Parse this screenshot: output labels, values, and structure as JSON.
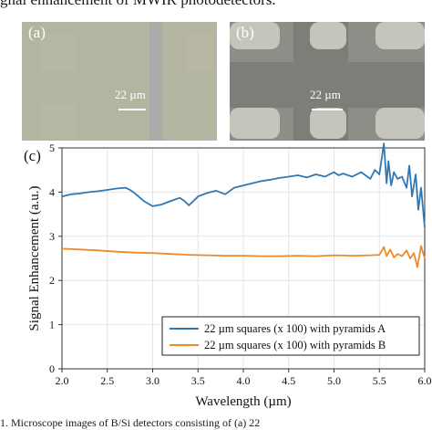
{
  "top_caption": "gnal enhancement of MWIR photodetectors.",
  "panels": {
    "a": {
      "label": "(a)",
      "scale_text": "22 µm"
    },
    "b": {
      "label": "(b)",
      "scale_text": "22 µm"
    },
    "c": {
      "label": "(c)"
    }
  },
  "bottom_caption": "1. Microscope images of B/Si detectors consisting of (a) 22",
  "colors": {
    "series_a": "#2f78b4",
    "series_b": "#ee8a2c",
    "grid": "#e4e4e4"
  },
  "chart_data": {
    "type": "line",
    "xlabel": "Wavelength  (µm)",
    "ylabel": "Signal Enhancement  (a.u.)",
    "xlim": [
      2.0,
      6.0
    ],
    "ylim": [
      0,
      5
    ],
    "xticks": [
      "2.0",
      "2.5",
      "3.0",
      "3.5",
      "4.0",
      "4.5",
      "5.0",
      "5.5",
      "6.0"
    ],
    "yticks": [
      "0",
      "1",
      "2",
      "3",
      "4",
      "5"
    ],
    "grid": true,
    "legend_position": "bottom-right",
    "series": [
      {
        "name": "22 µm squares (x 100) with pyramids A",
        "color": "#2f78b4",
        "x": [
          2.0,
          2.1,
          2.2,
          2.3,
          2.4,
          2.5,
          2.6,
          2.7,
          2.75,
          2.8,
          2.9,
          3.0,
          3.1,
          3.2,
          3.3,
          3.35,
          3.4,
          3.45,
          3.5,
          3.6,
          3.7,
          3.8,
          3.9,
          4.0,
          4.1,
          4.2,
          4.3,
          4.4,
          4.5,
          4.6,
          4.7,
          4.8,
          4.9,
          5.0,
          5.05,
          5.1,
          5.2,
          5.3,
          5.4,
          5.45,
          5.5,
          5.55,
          5.58,
          5.6,
          5.63,
          5.66,
          5.7,
          5.75,
          5.8,
          5.83,
          5.86,
          5.9,
          5.93,
          5.96,
          6.0
        ],
        "y": [
          3.9,
          3.95,
          3.97,
          4.0,
          4.02,
          4.05,
          4.08,
          4.1,
          4.05,
          3.98,
          3.8,
          3.68,
          3.72,
          3.8,
          3.87,
          3.8,
          3.7,
          3.8,
          3.9,
          3.98,
          4.03,
          3.95,
          4.1,
          4.15,
          4.2,
          4.25,
          4.28,
          4.32,
          4.35,
          4.38,
          4.33,
          4.4,
          4.35,
          4.45,
          4.38,
          4.42,
          4.35,
          4.45,
          4.3,
          4.5,
          4.4,
          5.1,
          4.2,
          4.7,
          4.15,
          4.45,
          4.3,
          4.35,
          4.1,
          4.6,
          3.9,
          4.4,
          3.6,
          4.1,
          3.2
        ]
      },
      {
        "name": "22 µm squares (x 100) with pyramids B",
        "color": "#ee8a2c",
        "x": [
          2.0,
          2.2,
          2.4,
          2.6,
          2.8,
          3.0,
          3.2,
          3.4,
          3.6,
          3.8,
          4.0,
          4.2,
          4.4,
          4.6,
          4.8,
          5.0,
          5.2,
          5.4,
          5.5,
          5.55,
          5.58,
          5.62,
          5.66,
          5.7,
          5.75,
          5.8,
          5.84,
          5.88,
          5.92,
          5.96,
          6.0
        ],
        "y": [
          2.72,
          2.7,
          2.68,
          2.65,
          2.63,
          2.62,
          2.6,
          2.58,
          2.57,
          2.56,
          2.56,
          2.55,
          2.55,
          2.56,
          2.55,
          2.57,
          2.56,
          2.57,
          2.58,
          2.76,
          2.55,
          2.7,
          2.52,
          2.6,
          2.55,
          2.68,
          2.5,
          2.62,
          2.3,
          2.78,
          2.5
        ]
      }
    ]
  }
}
